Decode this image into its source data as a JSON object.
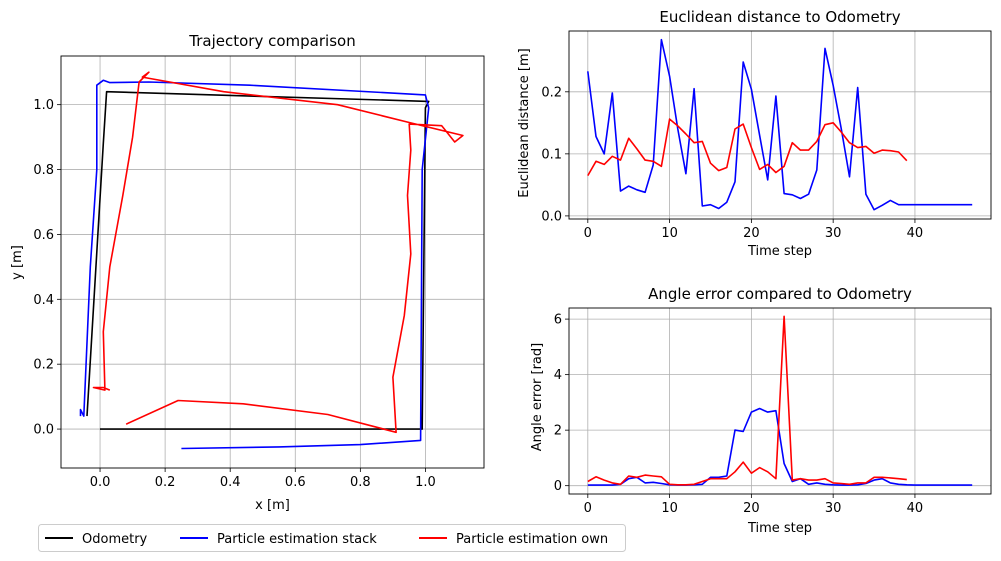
{
  "colors": {
    "odometry": "#000000",
    "stack": "#0000ff",
    "own": "#ff0000",
    "grid": "#b0b0b0"
  },
  "legend": {
    "placement": "bottom-left",
    "entries": [
      {
        "label": "Odometry",
        "color": "#000000"
      },
      {
        "label": "Particle estimation stack",
        "color": "#0000ff"
      },
      {
        "label": "Particle estimation own",
        "color": "#ff0000"
      }
    ]
  },
  "chart_data": [
    {
      "type": "line",
      "title": "Trajectory comparison",
      "xlabel": "x [m]",
      "ylabel": "y [m]",
      "xlim": [
        -0.12,
        1.18
      ],
      "ylim": [
        -0.12,
        1.15
      ],
      "xticks": [
        "0.0",
        "0.2",
        "0.4",
        "0.6",
        "0.8",
        "1.0"
      ],
      "xtick_values": [
        0,
        0.2,
        0.4,
        0.6,
        0.8,
        1.0
      ],
      "yticks": [
        "0.0",
        "0.2",
        "0.4",
        "0.6",
        "0.8",
        "1.0"
      ],
      "ytick_values": [
        0,
        0.2,
        0.4,
        0.6,
        0.8,
        1.0
      ],
      "grid": true,
      "series": [
        {
          "name": "Odometry",
          "color": "#000000",
          "points": [
            [
              0.0,
              0.0
            ],
            [
              0.99,
              0.0
            ],
            [
              1.0,
              0.99
            ],
            [
              1.01,
              1.01
            ],
            [
              0.02,
              1.04
            ],
            [
              0.01,
              0.88
            ],
            [
              -0.04,
              0.04
            ]
          ]
        },
        {
          "name": "Particle estimation stack",
          "color": "#0000ff",
          "points": [
            [
              0.25,
              -0.06
            ],
            [
              0.55,
              -0.055
            ],
            [
              0.8,
              -0.048
            ],
            [
              0.985,
              -0.035
            ],
            [
              0.99,
              0.8
            ],
            [
              1.01,
              0.99
            ],
            [
              1.0,
              1.03
            ],
            [
              0.46,
              1.06
            ],
            [
              0.15,
              1.07
            ],
            [
              0.03,
              1.068
            ],
            [
              0.01,
              1.075
            ],
            [
              -0.01,
              1.06
            ],
            [
              -0.01,
              0.8
            ],
            [
              -0.03,
              0.5
            ],
            [
              -0.05,
              0.04
            ],
            [
              -0.06,
              0.06
            ],
            [
              -0.06,
              0.04
            ]
          ]
        },
        {
          "name": "Particle estimation own",
          "color": "#ff0000",
          "points": [
            [
              0.08,
              0.015
            ],
            [
              0.24,
              0.088
            ],
            [
              0.44,
              0.078
            ],
            [
              0.7,
              0.045
            ],
            [
              0.91,
              -0.01
            ],
            [
              0.9,
              0.16
            ],
            [
              0.935,
              0.35
            ],
            [
              0.955,
              0.54
            ],
            [
              0.945,
              0.72
            ],
            [
              0.955,
              0.86
            ],
            [
              0.95,
              0.94
            ],
            [
              1.05,
              0.935
            ],
            [
              1.09,
              0.885
            ],
            [
              1.115,
              0.905
            ],
            [
              0.95,
              0.945
            ],
            [
              0.73,
              1.0
            ],
            [
              0.38,
              1.04
            ],
            [
              0.13,
              1.085
            ],
            [
              0.15,
              1.1
            ],
            [
              0.12,
              1.07
            ],
            [
              0.1,
              0.9
            ],
            [
              0.07,
              0.72
            ],
            [
              0.03,
              0.5
            ],
            [
              0.01,
              0.3
            ],
            [
              0.015,
              0.12
            ],
            [
              -0.02,
              0.128
            ],
            [
              0.01,
              0.128
            ],
            [
              0.03,
              0.12
            ]
          ]
        }
      ]
    },
    {
      "type": "line",
      "title": "Euclidean distance to Odometry",
      "xlabel": "Time step",
      "ylabel": "Euclidean distance [m]",
      "xlim": [
        -2.3,
        49.3
      ],
      "ylim": [
        -0.005,
        0.298
      ],
      "xticks": [
        "0",
        "10",
        "20",
        "30",
        "40"
      ],
      "xtick_values": [
        0,
        10,
        20,
        30,
        40
      ],
      "yticks": [
        "0.0",
        "0.1",
        "0.2"
      ],
      "ytick_values": [
        0,
        0.1,
        0.2
      ],
      "grid": true,
      "series": [
        {
          "name": "Particle estimation stack",
          "color": "#0000ff",
          "y": [
            0.233,
            0.128,
            0.1,
            0.198,
            0.04,
            0.048,
            0.042,
            0.038,
            0.082,
            0.284,
            0.225,
            0.14,
            0.068,
            0.205,
            0.016,
            0.018,
            0.012,
            0.022,
            0.055,
            0.248,
            0.204,
            0.13,
            0.058,
            0.193,
            0.036,
            0.034,
            0.028,
            0.035,
            0.074,
            0.27,
            0.21,
            0.14,
            0.063,
            0.207,
            0.035,
            0.01,
            0.017,
            0.025,
            0.018,
            0.018,
            0.018,
            0.018,
            0.018,
            0.018,
            0.018,
            0.018,
            0.018,
            0.018
          ]
        },
        {
          "name": "Particle estimation own",
          "color": "#ff0000",
          "y": [
            0.065,
            0.088,
            0.083,
            0.096,
            0.09,
            0.125,
            0.108,
            0.09,
            0.088,
            0.08,
            0.156,
            0.145,
            0.132,
            0.118,
            0.12,
            0.085,
            0.073,
            0.078,
            0.14,
            0.148,
            0.11,
            0.075,
            0.083,
            0.07,
            0.08,
            0.118,
            0.106,
            0.106,
            0.12,
            0.147,
            0.15,
            0.135,
            0.118,
            0.11,
            0.112,
            0.101,
            0.106,
            0.105,
            0.103,
            0.089
          ]
        }
      ]
    },
    {
      "type": "line",
      "title": "Angle error compared to Odometry",
      "xlabel": "Time step",
      "ylabel": "Angle error [rad]",
      "xlim": [
        -2.3,
        49.3
      ],
      "ylim": [
        -0.3,
        6.4
      ],
      "xticks": [
        "0",
        "10",
        "20",
        "30",
        "40"
      ],
      "xtick_values": [
        0,
        10,
        20,
        30,
        40
      ],
      "yticks": [
        "0",
        "2",
        "4",
        "6"
      ],
      "ytick_values": [
        0,
        2,
        4,
        6
      ],
      "grid": true,
      "series": [
        {
          "name": "Particle estimation stack",
          "color": "#0000ff",
          "y": [
            0.02,
            0.02,
            0.02,
            0.02,
            0.05,
            0.25,
            0.3,
            0.1,
            0.12,
            0.08,
            0.03,
            0.02,
            0.02,
            0.03,
            0.05,
            0.3,
            0.3,
            0.35,
            2.0,
            1.95,
            2.65,
            2.78,
            2.65,
            2.7,
            0.8,
            0.15,
            0.25,
            0.05,
            0.1,
            0.05,
            0.03,
            0.02,
            0.02,
            0.03,
            0.08,
            0.2,
            0.25,
            0.1,
            0.05,
            0.03,
            0.02,
            0.02,
            0.02,
            0.02,
            0.02,
            0.02,
            0.02,
            0.02
          ]
        },
        {
          "name": "Particle estimation own",
          "color": "#ff0000",
          "y": [
            0.15,
            0.32,
            0.2,
            0.1,
            0.05,
            0.35,
            0.3,
            0.38,
            0.35,
            0.32,
            0.05,
            0.03,
            0.03,
            0.05,
            0.15,
            0.25,
            0.25,
            0.25,
            0.5,
            0.85,
            0.45,
            0.65,
            0.5,
            0.25,
            6.1,
            0.2,
            0.25,
            0.2,
            0.2,
            0.25,
            0.1,
            0.08,
            0.05,
            0.1,
            0.1,
            0.3,
            0.3,
            0.28,
            0.25,
            0.22
          ]
        }
      ]
    }
  ]
}
